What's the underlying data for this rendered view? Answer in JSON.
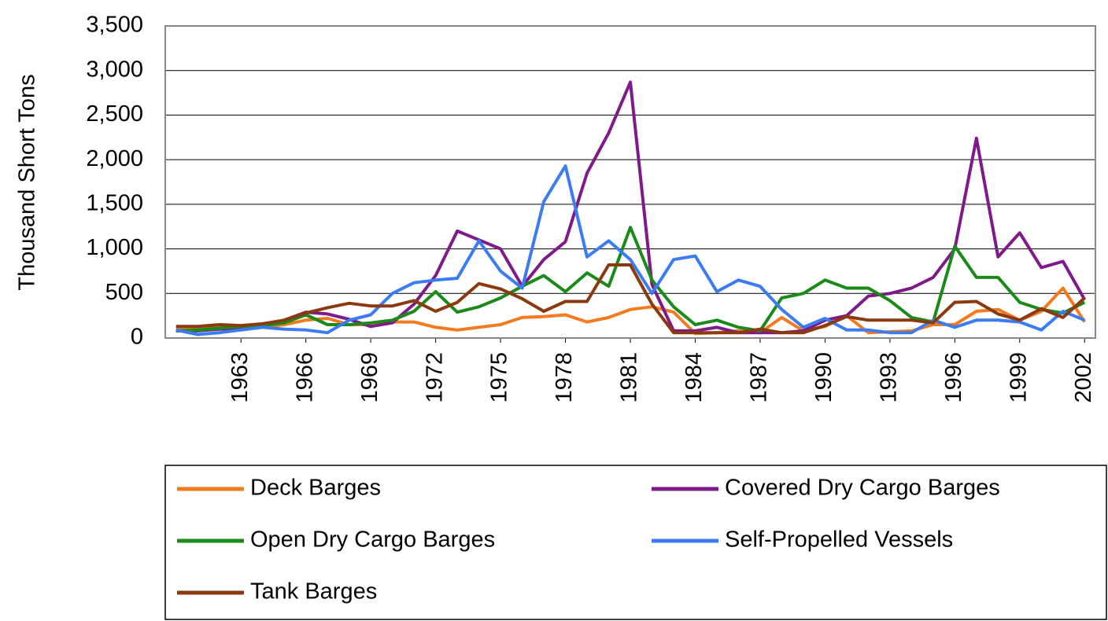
{
  "chart_data": {
    "type": "line",
    "y_label": "Thousand Short Tons",
    "x": [
      1960,
      1961,
      1962,
      1963,
      1964,
      1965,
      1966,
      1967,
      1968,
      1969,
      1970,
      1971,
      1972,
      1973,
      1974,
      1975,
      1976,
      1977,
      1978,
      1979,
      1980,
      1981,
      1982,
      1983,
      1984,
      1985,
      1986,
      1987,
      1988,
      1989,
      1990,
      1991,
      1992,
      1993,
      1994,
      1995,
      1996,
      1997,
      1998,
      1999,
      2000,
      2001,
      2002
    ],
    "xlim": [
      1959.5,
      2002.5
    ],
    "xticks": [
      1963,
      1966,
      1969,
      1972,
      1975,
      1978,
      1981,
      1984,
      1987,
      1990,
      1993,
      1996,
      1999,
      2002
    ],
    "ylim": [
      0,
      3500
    ],
    "yticks": [
      0,
      500,
      {
        "value": 1000,
        "label": "1,000"
      },
      {
        "value": 1500,
        "label": "1,500"
      },
      {
        "value": 2000,
        "label": "2,000"
      },
      {
        "value": 2500,
        "label": "2,500"
      },
      {
        "value": 3000,
        "label": "3,000"
      },
      {
        "value": 3500,
        "label": "3,500"
      }
    ],
    "grid": true,
    "legend": "bottom",
    "series": [
      {
        "name": "Deck Barges",
        "color": "#f47a1f",
        "values": [
          100,
          100,
          120,
          130,
          120,
          150,
          200,
          220,
          150,
          150,
          180,
          180,
          120,
          90,
          120,
          150,
          230,
          240,
          260,
          180,
          230,
          320,
          350,
          290,
          50,
          60,
          80,
          60,
          230,
          80,
          130,
          250,
          60,
          70,
          80,
          150,
          150,
          300,
          320,
          200,
          300,
          560,
          180
        ]
      },
      {
        "name": "Covered Dry Cargo Barges",
        "color": "#7f1a8a",
        "values": [
          80,
          80,
          100,
          110,
          140,
          200,
          290,
          270,
          210,
          130,
          170,
          380,
          700,
          1200,
          1100,
          1000,
          580,
          880,
          1080,
          1850,
          2300,
          2870,
          600,
          80,
          80,
          120,
          60,
          60,
          60,
          80,
          200,
          250,
          470,
          500,
          560,
          680,
          1000,
          2240,
          910,
          1180,
          790,
          860,
          430
        ]
      },
      {
        "name": "Open Dry Cargo Barges",
        "color": "#1a8a1a",
        "values": [
          80,
          90,
          110,
          130,
          140,
          170,
          260,
          150,
          150,
          170,
          200,
          300,
          520,
          290,
          350,
          450,
          580,
          700,
          520,
          730,
          580,
          1240,
          650,
          350,
          150,
          200,
          120,
          80,
          450,
          500,
          650,
          560,
          560,
          420,
          230,
          180,
          1030,
          680,
          680,
          400,
          320,
          280,
          400
        ]
      },
      {
        "name": "Self-Propelled Vessels",
        "color": "#3b7cf5",
        "values": [
          90,
          40,
          60,
          90,
          120,
          100,
          90,
          60,
          200,
          260,
          500,
          620,
          650,
          670,
          1090,
          750,
          560,
          1530,
          1930,
          910,
          1090,
          880,
          500,
          880,
          920,
          520,
          650,
          580,
          320,
          120,
          220,
          90,
          90,
          60,
          60,
          200,
          120,
          200,
          200,
          180,
          90,
          300,
          200
        ]
      },
      {
        "name": "Tank Barges",
        "color": "#8b3a0f",
        "values": [
          130,
          130,
          150,
          140,
          160,
          200,
          280,
          340,
          390,
          360,
          360,
          420,
          300,
          400,
          610,
          550,
          440,
          300,
          410,
          410,
          820,
          820,
          380,
          60,
          60,
          60,
          60,
          100,
          60,
          60,
          140,
          240,
          200,
          200,
          200,
          170,
          400,
          410,
          270,
          200,
          330,
          230,
          450
        ]
      }
    ]
  }
}
